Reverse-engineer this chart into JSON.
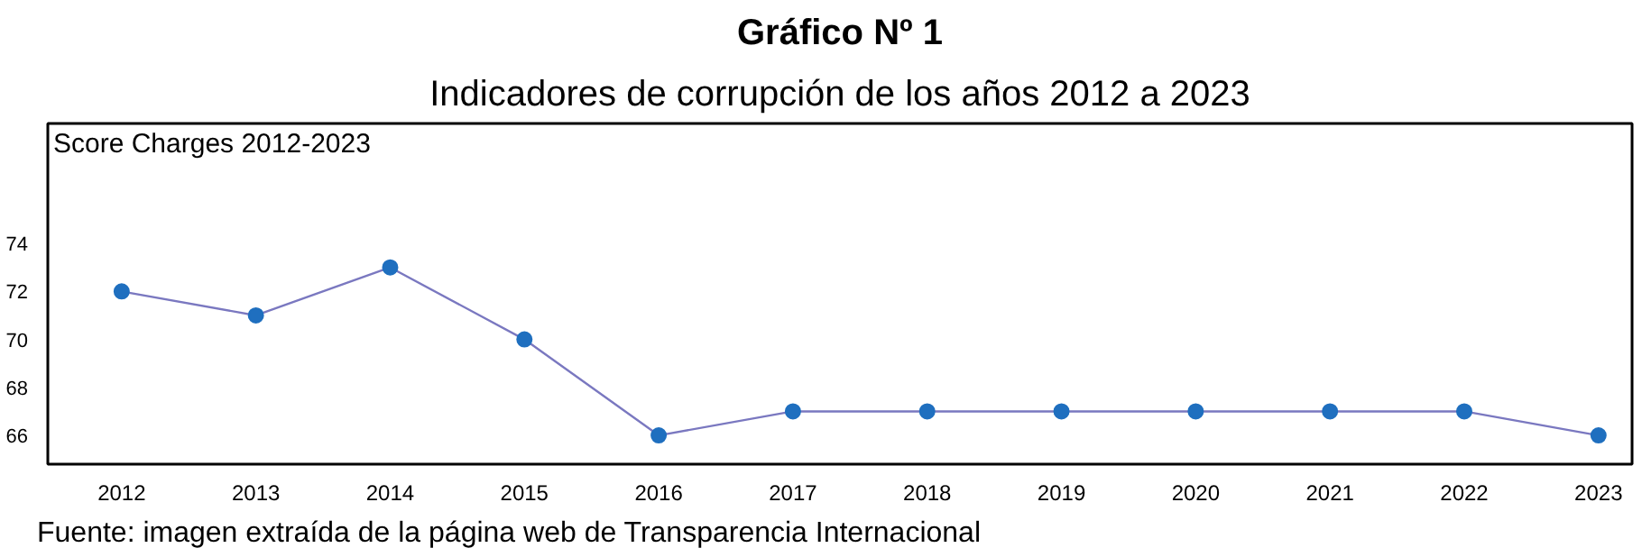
{
  "chart_data": {
    "type": "line",
    "title": "Gráfico Nº 1",
    "subtitle": "Indicadores de corrupción de los años 2012 a 2023",
    "ylabel": "Score Charges 2012-2023",
    "categories": [
      "2012",
      "2013",
      "2014",
      "2015",
      "2016",
      "2017",
      "2018",
      "2019",
      "2020",
      "2021",
      "2022",
      "2023"
    ],
    "series": [
      {
        "color": "#1f6fbf",
        "values": [
          72,
          71,
          73,
          70,
          66,
          67,
          67,
          67,
          67,
          67,
          67,
          66
        ]
      }
    ],
    "ylim": [
      64.8,
      79
    ],
    "yticks": [
      66,
      68,
      70,
      72,
      74
    ],
    "grid": false,
    "marker": "circle",
    "line_style": "solid",
    "annotations": [
      "Fuente: imagen extraída de la página web de Transparencia Internacional"
    ]
  }
}
